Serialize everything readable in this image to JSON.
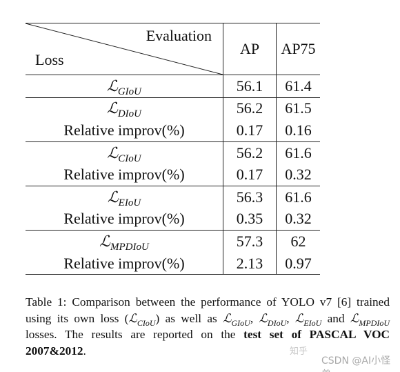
{
  "table": {
    "header": {
      "diagonal_top": "Evaluation",
      "diagonal_bottom": "Loss",
      "columns": [
        "AP",
        "AP75"
      ]
    },
    "groups": [
      {
        "rows": [
          {
            "loss": {
              "symbol": "ℒ",
              "subscript": "GIoU"
            },
            "values": [
              "56.1",
              "61.4"
            ]
          }
        ]
      },
      {
        "rows": [
          {
            "loss": {
              "symbol": "ℒ",
              "subscript": "DIoU"
            },
            "values": [
              "56.2",
              "61.5"
            ]
          },
          {
            "loss": "Relative improv(%)",
            "values": [
              "0.17",
              "0.16"
            ]
          }
        ]
      },
      {
        "rows": [
          {
            "loss": {
              "symbol": "ℒ",
              "subscript": "CIoU"
            },
            "values": [
              "56.2",
              "61.6"
            ]
          },
          {
            "loss": "Relative improv(%)",
            "values": [
              "0.17",
              "0.32"
            ]
          }
        ]
      },
      {
        "rows": [
          {
            "loss": {
              "symbol": "ℒ",
              "subscript": "EIoU"
            },
            "values": [
              "56.3",
              "61.6"
            ]
          },
          {
            "loss": "Relative improv(%)",
            "values": [
              "0.35",
              "0.32"
            ]
          }
        ]
      },
      {
        "bold": true,
        "rows": [
          {
            "loss": {
              "symbol": "ℒ",
              "subscript": "MPDIoU"
            },
            "values": [
              "57.3",
              "62"
            ]
          },
          {
            "loss": "Relative improv(%)",
            "values": [
              "2.13",
              "0.97"
            ]
          }
        ]
      }
    ]
  },
  "caption": {
    "segments": [
      {
        "text": "Table 1: Comparison between the performance of YOLO v7 [6] trained using its own loss ("
      },
      {
        "symbol": "ℒ",
        "subscript": "CIoU"
      },
      {
        "text": ") as well as "
      },
      {
        "symbol": "ℒ",
        "subscript": "GIoU"
      },
      {
        "text": ", "
      },
      {
        "symbol": "ℒ",
        "subscript": "DIoU"
      },
      {
        "text": ", "
      },
      {
        "symbol": "ℒ",
        "subscript": "EIoU"
      },
      {
        "text": " and "
      },
      {
        "symbol": "ℒ",
        "subscript": "MPDIoU"
      },
      {
        "text": " losses. The results are reported on the "
      },
      {
        "bold": "test set of PASCAL VOC 2007&2012"
      },
      {
        "text": "."
      }
    ]
  },
  "watermark": {
    "site": "知乎",
    "author": "CSDN @AI小怪兽"
  }
}
